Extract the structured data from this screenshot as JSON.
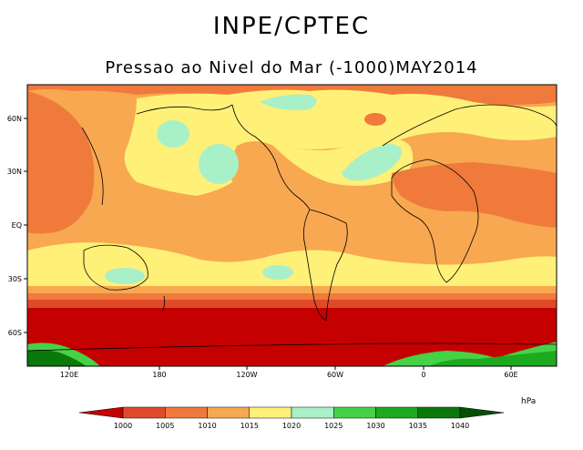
{
  "header": {
    "title": "INPE/CPTEC",
    "subtitle": "Pressao ao Nivel do Mar (-1000)MAY2014"
  },
  "map": {
    "lat_labels": [
      "60N",
      "30N",
      "EQ",
      "30S",
      "60S"
    ],
    "lon_labels": [
      "120E",
      "180",
      "120W",
      "60W",
      "0",
      "60E"
    ]
  },
  "colorbar": {
    "units": "hPa",
    "levels": [
      "1000",
      "1005",
      "1010",
      "1015",
      "1020",
      "1025",
      "1030",
      "1035",
      "1040"
    ],
    "colors": [
      "#c40000",
      "#e04a28",
      "#f07a3c",
      "#f8a850",
      "#fff078",
      "#a8f0c8",
      "#46d246",
      "#1eaa1e",
      "#0a780a",
      "#045004"
    ]
  },
  "colors": {
    "land_outline": "#000000",
    "frame": "#000000"
  }
}
